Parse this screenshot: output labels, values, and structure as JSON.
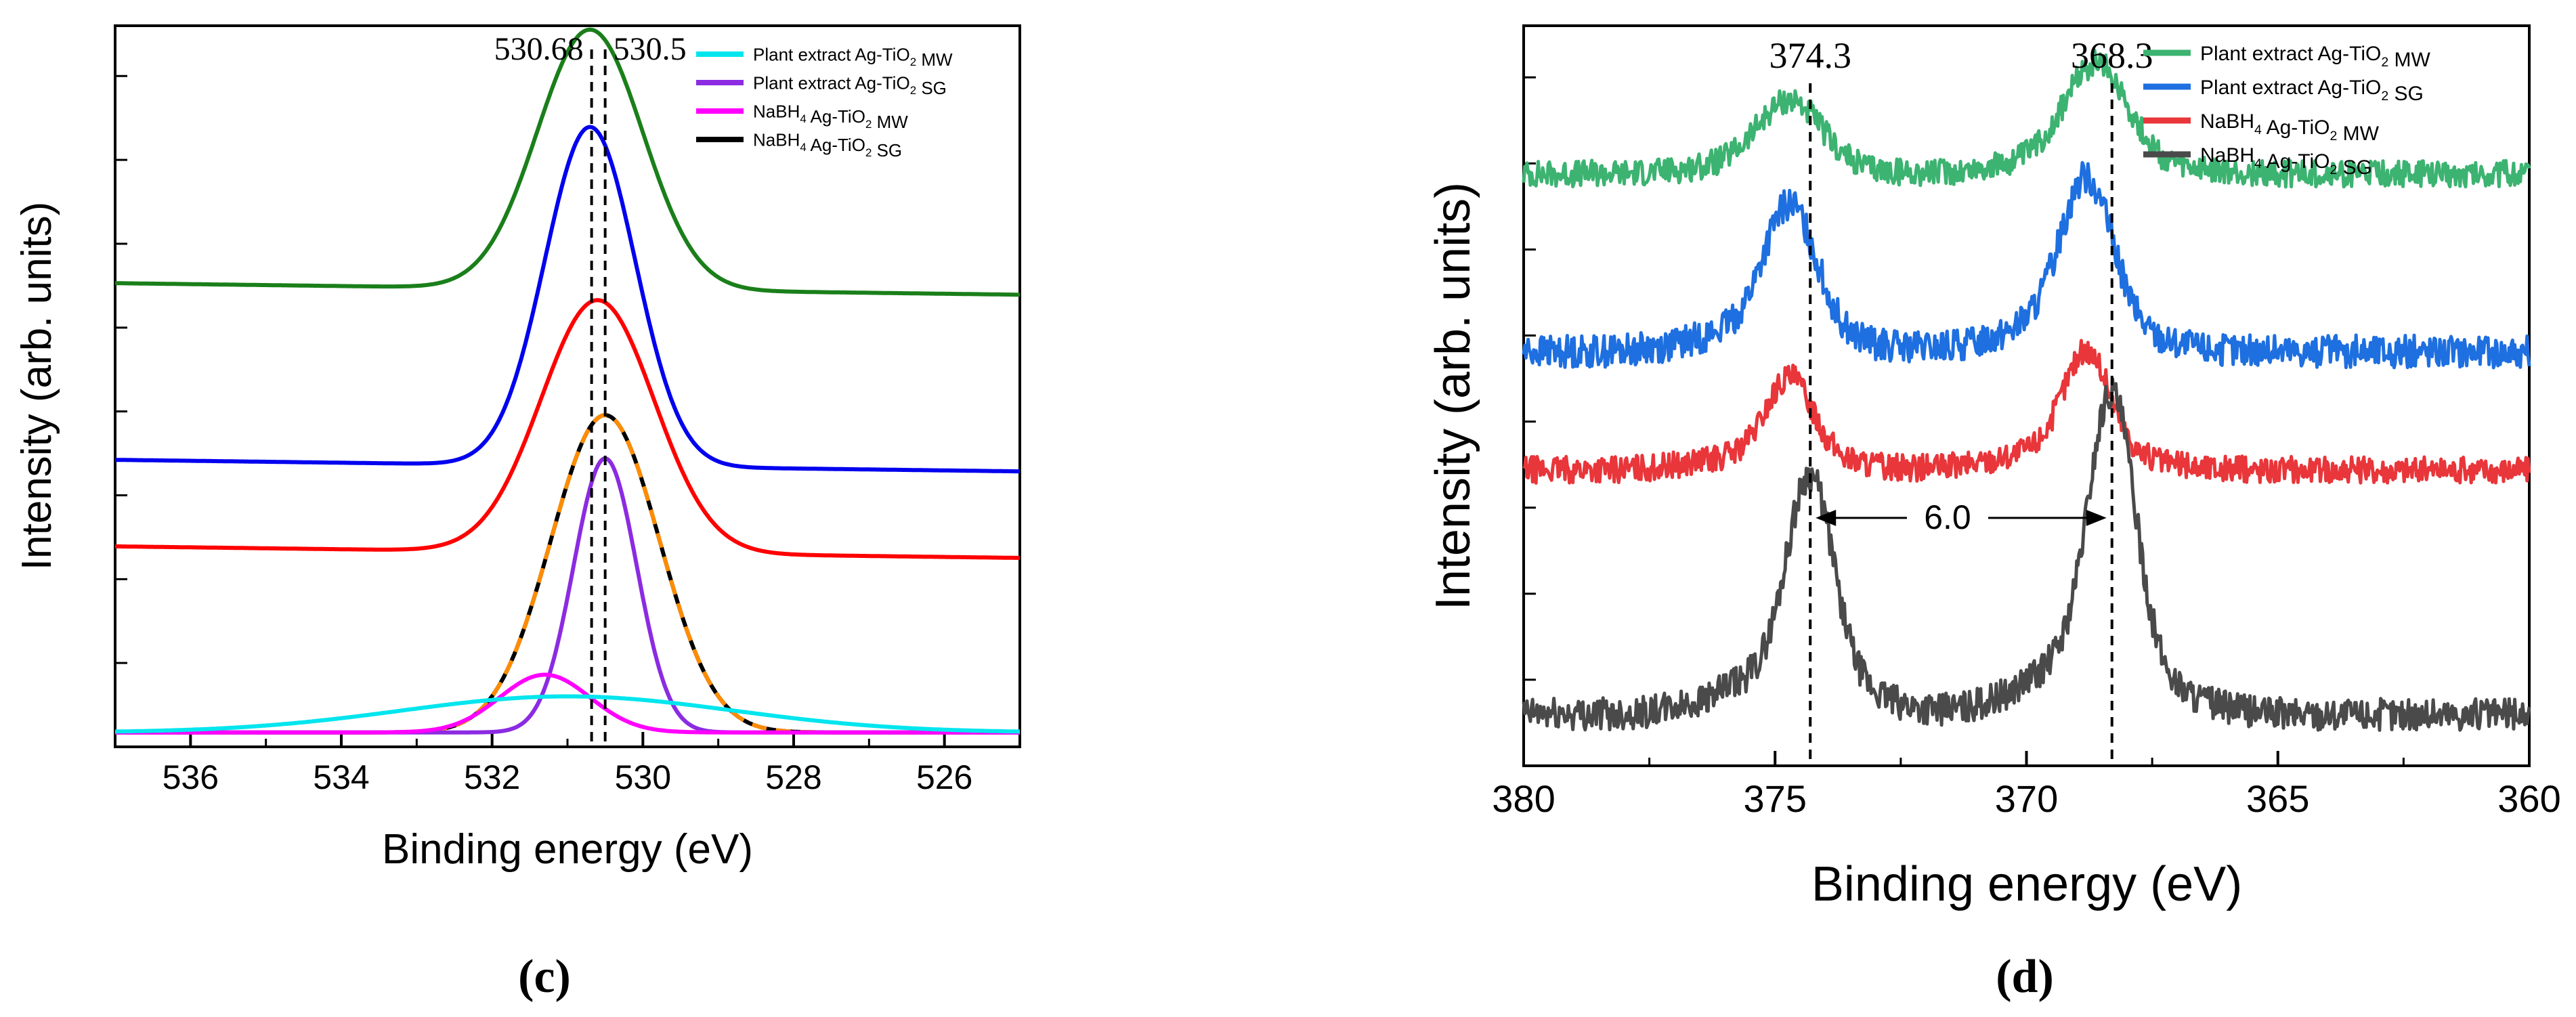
{
  "chart_data": [
    {
      "type": "line",
      "panel_label": "(c)",
      "xlabel": "Binding energy (eV)",
      "ylabel": "Intensity (arb. units)",
      "xlim": [
        537,
        525
      ],
      "ylim": [
        0,
        1
      ],
      "x_ticks": [
        536,
        534,
        532,
        530,
        528,
        526
      ],
      "y_ticks_shown_as_labels": false,
      "grid": false,
      "legend_position": "top-right",
      "reference_lines": [
        {
          "x": 530.68,
          "label": "530.68"
        },
        {
          "x": 530.5,
          "label": "530.5"
        }
      ],
      "legend": [
        {
          "text": "Plant extract Ag-TiO",
          "sub": "2",
          "tail": " MW",
          "color": "#00e5ee"
        },
        {
          "text": "Plant extract Ag-TiO",
          "sub": "2",
          "tail": " SG",
          "color": "#8b2be2"
        },
        {
          "text": "NaBH",
          "sub": "4",
          "tail": " Ag-TiO",
          "sub2": "2",
          "tail2": " MW",
          "color": "#ff00ff"
        },
        {
          "text": "NaBH",
          "sub": "4",
          "tail": " Ag-TiO",
          "sub2": "2",
          "tail2": " SG",
          "color": "#000000"
        }
      ],
      "series": [
        {
          "name": "Green spectrum",
          "color": "#1a7f1a",
          "baseline": 0.635,
          "peak_center": 530.7,
          "peak_height": 0.36,
          "sigma": 0.7
        },
        {
          "name": "Blue spectrum",
          "color": "#0000ee",
          "baseline": 0.39,
          "peak_center": 530.7,
          "peak_height": 0.47,
          "sigma": 0.6
        },
        {
          "name": "Red spectrum",
          "color": "#ff0000",
          "baseline": 0.27,
          "peak_center": 530.6,
          "peak_height": 0.35,
          "sigma": 0.75
        },
        {
          "name": "Fit envelope (black)",
          "color": "#000000",
          "baseline": 0.02,
          "peak_center": 530.5,
          "peak_height": 0.44,
          "sigma": 0.72
        },
        {
          "name": "Fit envelope (orange dashed)",
          "color": "#ff8c00",
          "dashed": true,
          "baseline": 0.02,
          "peak_center": 530.5,
          "peak_height": 0.44,
          "sigma": 0.72
        },
        {
          "name": "Violet component",
          "color": "#8b2be2",
          "baseline": 0.02,
          "peak_center": 530.5,
          "peak_height": 0.38,
          "sigma": 0.42
        },
        {
          "name": "Magenta component",
          "color": "#ff00ff",
          "baseline": 0.02,
          "peak_center": 531.3,
          "peak_height": 0.08,
          "sigma": 0.6
        },
        {
          "name": "Cyan component",
          "color": "#00e5ee",
          "baseline": 0.02,
          "peak_center": 531.0,
          "peak_height": 0.05,
          "sigma": 2.2
        }
      ]
    },
    {
      "type": "line",
      "panel_label": "(d)",
      "xlabel": "Binding energy (eV)",
      "ylabel": "Intensity (arb. units)",
      "xlim": [
        380,
        360
      ],
      "ylim": [
        0,
        1
      ],
      "x_ticks": [
        380,
        375,
        370,
        365,
        360
      ],
      "y_ticks_shown_as_labels": false,
      "grid": false,
      "legend_position": "top-right",
      "reference_lines": [
        {
          "x": 374.3,
          "label": "374.3"
        },
        {
          "x": 368.3,
          "label": "368.3"
        }
      ],
      "annotation": {
        "text": "6.0",
        "from": 374.3,
        "to": 368.3,
        "y": 0.335
      },
      "legend": [
        {
          "text": "Plant extract Ag-TiO",
          "sub": "2",
          "tail": " MW",
          "color": "#3cb371"
        },
        {
          "text": "Plant extract Ag-TiO",
          "sub": "2",
          "tail": " SG",
          "color": "#1e6fe0"
        },
        {
          "text": "NaBH",
          "sub": "4",
          "tail": " Ag-TiO",
          "sub2": "2",
          "tail2": " MW",
          "color": "#e8363a"
        },
        {
          "text": "NaBH",
          "sub": "4",
          "tail": " Ag-TiO",
          "sub2": "2",
          "tail2": " SG",
          "color": "#4a4a4a"
        }
      ],
      "series": [
        {
          "name": "Plant extract Ag-TiO2 MW",
          "color": "#3cb371",
          "baseline": 0.8,
          "noise": 0.018,
          "peaks": [
            {
              "x": 374.7,
              "h": 0.08,
              "w": 0.6
            },
            {
              "x": 368.6,
              "h": 0.12,
              "w": 0.6
            }
          ]
        },
        {
          "name": "Plant extract Ag-TiO2 SG",
          "color": "#1e6fe0",
          "baseline": 0.56,
          "noise": 0.022,
          "peaks": [
            {
              "x": 374.7,
              "h": 0.16,
              "w": 0.5
            },
            {
              "x": 368.8,
              "h": 0.19,
              "w": 0.5
            }
          ]
        },
        {
          "name": "NaBH4 Ag-TiO2 MW",
          "color": "#e8363a",
          "baseline": 0.4,
          "noise": 0.018,
          "peaks": [
            {
              "x": 374.7,
              "h": 0.1,
              "w": 0.45
            },
            {
              "x": 368.8,
              "h": 0.13,
              "w": 0.45
            }
          ]
        },
        {
          "name": "NaBH4 Ag-TiO2 SG",
          "color": "#4a4a4a",
          "baseline": 0.07,
          "noise": 0.022,
          "peaks": [
            {
              "x": 374.3,
              "h": 0.26,
              "w": 0.45
            },
            {
              "x": 368.3,
              "h": 0.35,
              "w": 0.45
            }
          ]
        }
      ]
    }
  ]
}
